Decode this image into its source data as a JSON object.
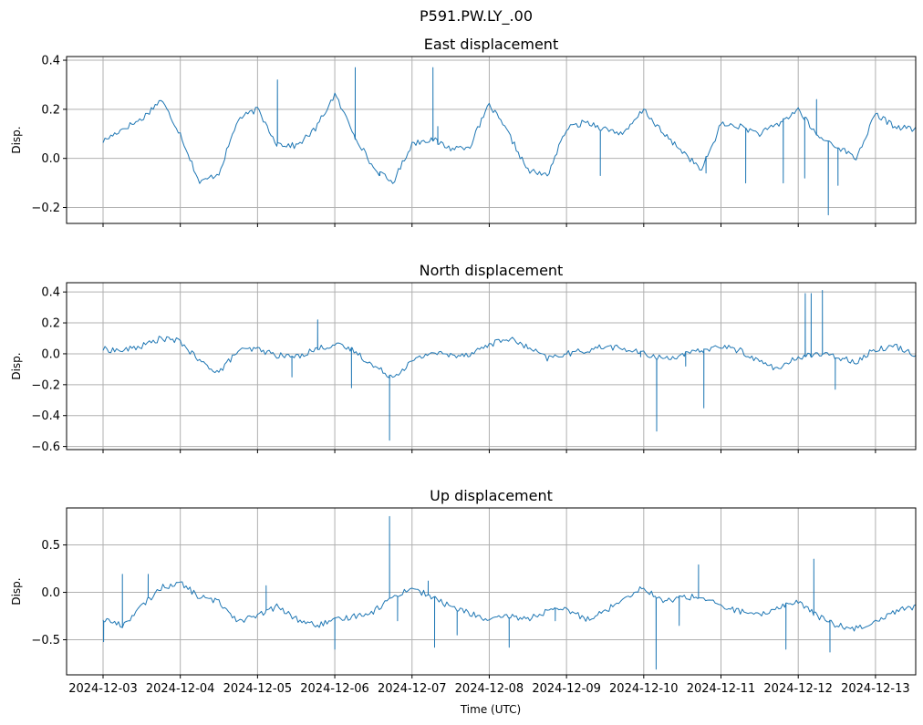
{
  "figure_title": "P591.PW.LY_.00",
  "xlabel": "Time (UTC)",
  "colors": {
    "series": "#1f77b4",
    "grid": "#b0b0b0",
    "frame": "#000000"
  },
  "chart_data": [
    {
      "type": "line",
      "title": "East displacement",
      "ylabel": "Disp.",
      "xlim": [
        "2024-12-02T12:40",
        "2024-12-13T12:30"
      ],
      "ylim": [
        -0.265,
        0.415
      ],
      "yticks": [
        -0.2,
        0.0,
        0.2,
        0.4
      ],
      "ytick_labels": [
        "−0.2",
        "0.0",
        "0.2",
        "0.4"
      ],
      "grid": true,
      "series": [
        {
          "x_start": "2024-12-03T00:00",
          "x_step_hours": 6,
          "values": [
            0.07,
            0.12,
            0.16,
            0.24,
            0.1,
            -0.1,
            -0.06,
            0.16,
            0.2,
            0.06,
            0.05,
            0.12,
            0.26,
            0.1,
            -0.04,
            -0.1,
            0.06,
            0.08,
            0.04,
            0.05,
            0.22,
            0.1,
            -0.05,
            -0.07,
            0.12,
            0.15,
            0.12,
            0.1,
            0.2,
            0.1,
            0.03,
            -0.05,
            0.14,
            0.13,
            0.1,
            0.14,
            0.2,
            0.09,
            0.05,
            0.0,
            0.18,
            0.13,
            0.12,
            0.09,
            0.14,
            0.12,
            0.08,
            0.12,
            0.1,
            0.1,
            0.08,
            0.03,
            0.16,
            0.14,
            0.15,
            0.12,
            0.17,
            0.1,
            0.08,
            0.05,
            0.18,
            0.16,
            0.12,
            0.1,
            0.16,
            0.12,
            0.05,
            0.08,
            0.18,
            0.15,
            0.14,
            0.06,
            0.18,
            0.19,
            0.1,
            0.06,
            0.18,
            0.15,
            0.09,
            0.05,
            0.12,
            0.17,
            0.16,
            0.05,
            0.16,
            0.2,
            0.12,
            0.06,
            0.03,
            0.12,
            0.18,
            0.12,
            0.08,
            0.12,
            0.17,
            0.1,
            0.05,
            0.1,
            0.18,
            0.09,
            0.13,
            0.15,
            0.11,
            0.16,
            0.17,
            0.12,
            0.18,
            0.08,
            0.15,
            0.18,
            0.12,
            0.09,
            0.12,
            0.17,
            0.15,
            0.06,
            0.1,
            0.18,
            0.16,
            0.1,
            0.05,
            0.12,
            0.14,
            0.12,
            0.1,
            0.14,
            0.18,
            0.13,
            0.09,
            0.06,
            0.15,
            0.13,
            0.05,
            0.08,
            0.16,
            0.18,
            0.1,
            0.05,
            0.08,
            0.12,
            0.16,
            0.12,
            0.1,
            0.12,
            0.16,
            0.12,
            0.08,
            0.12,
            0.14,
            0.15,
            0.11,
            0.05,
            0.14,
            0.18,
            0.1,
            0.04,
            0.12,
            0.15,
            0.12,
            0.06,
            0.1,
            0.14,
            0.18,
            0.12,
            0.08,
            0.1,
            0.14,
            0.12,
            0.08,
            0.12,
            0.2,
            0.12,
            0.02,
            0.18,
            0.2,
            0.18,
            0.1,
            0.04,
            0.09,
            0.14,
            0.11,
            0.13,
            0.12
          ],
          "spikes": [
            [
              "2024-12-05T06:10",
              0.32
            ],
            [
              "2024-12-06T06:20",
              0.37
            ],
            [
              "2024-12-06T14:00",
              -0.07
            ],
            [
              "2024-12-07T06:30",
              0.37
            ],
            [
              "2024-12-07T08:00",
              0.13
            ],
            [
              "2024-12-08T12:00",
              -0.04
            ],
            [
              "2024-12-09T10:30",
              -0.07
            ],
            [
              "2024-12-10T19:20",
              -0.06
            ],
            [
              "2024-12-11T07:40",
              -0.1
            ],
            [
              "2024-12-11T19:20",
              -0.1
            ],
            [
              "2024-12-12T02:00",
              -0.08
            ],
            [
              "2024-12-12T05:40",
              0.24
            ],
            [
              "2024-12-12T09:20",
              -0.23
            ],
            [
              "2024-12-12T12:20",
              -0.11
            ]
          ]
        }
      ]
    },
    {
      "type": "line",
      "title": "North displacement",
      "ylabel": "Disp.",
      "xlim": [
        "2024-12-02T12:40",
        "2024-12-13T12:30"
      ],
      "ylim": [
        -0.62,
        0.46
      ],
      "yticks": [
        -0.6,
        -0.4,
        -0.2,
        0.0,
        0.2,
        0.4
      ],
      "ytick_labels": [
        "−0.6",
        "−0.4",
        "−0.2",
        "0.0",
        "0.2",
        "0.4"
      ],
      "grid": true,
      "series": [
        {
          "x_start": "2024-12-03T00:00",
          "x_step_hours": 6,
          "values": [
            0.03,
            0.02,
            0.05,
            0.1,
            0.08,
            -0.05,
            -0.12,
            0.02,
            0.03,
            -0.01,
            -0.02,
            0.03,
            0.06,
            0.02,
            -0.08,
            -0.15,
            -0.05,
            0.01,
            -0.01,
            0.0,
            0.06,
            0.1,
            0.04,
            -0.03,
            0.0,
            0.02,
            0.05,
            0.03,
            0.0,
            -0.03,
            -0.01,
            0.02,
            0.05,
            0.02,
            -0.05,
            -0.1,
            -0.02,
            0.0,
            -0.02,
            -0.05,
            0.03,
            0.05,
            0.0,
            -0.03,
            -0.02,
            0.04,
            0.0,
            -0.05,
            -0.03,
            -0.06,
            -0.08,
            -0.03,
            -0.1,
            -0.15,
            -0.05,
            0.02,
            0.04,
            -0.02,
            -0.05,
            -0.02,
            0.02,
            0.04,
            0.0,
            -0.08,
            -0.04,
            0.02,
            0.03,
            -0.03,
            -0.01,
            0.02,
            0.01,
            -0.05,
            -0.08,
            0.0,
            0.04,
            0.01,
            0.01,
            0.04,
            0.0,
            -0.05,
            -0.02,
            0.01,
            0.0,
            -0.08,
            -0.14,
            -0.05,
            0.03,
            0.04,
            0.0,
            0.01,
            -0.02,
            0.01,
            0.02,
            0.04,
            0.03,
            -0.02,
            0.0,
            0.03,
            0.05,
            0.04,
            0.06,
            0.02,
            -0.05,
            -0.08,
            -0.15,
            -0.1,
            -0.03,
            0.02,
            0.03,
            0.05,
            0.06,
            0.02,
            0.0,
            0.02,
            0.04,
            0.04,
            0.02,
            -0.02,
            0.0,
            0.03,
            0.02,
            0.0,
            0.04,
            0.02,
            -0.01,
            0.01,
            0.05,
            0.03,
            0.02,
            0.05,
            -0.03,
            -0.06,
            -0.05,
            -0.08,
            -0.1,
            0.03,
            0.04,
            0.0,
            0.02,
            0.04,
            0.06,
            0.02,
            0.05,
            0.04,
            0.08,
            0.03,
            0.05,
            0.02,
            0.04,
            0.03,
            0.01,
            -0.03,
            0.0,
            0.02,
            0.03,
            0.02,
            0.04,
            0.05,
            -0.05,
            -0.1,
            -0.08,
            -0.03,
            0.02,
            0.04,
            0.03,
            0.05,
            0.06,
            0.05,
            0.08,
            0.05,
            0.06,
            0.03,
            0.02,
            0.04,
            -0.08,
            -0.12,
            -0.06,
            0.04,
            0.06,
            0.07,
            0.03,
            0.01,
            0.02,
            0.04,
            0.06,
            0.05,
            0.08,
            0.09
          ],
          "spikes": [
            [
              "2024-12-05T18:40",
              0.22
            ],
            [
              "2024-12-05T10:40",
              -0.15
            ],
            [
              "2024-12-06T17:00",
              -0.56
            ],
            [
              "2024-12-06T05:10",
              -0.22
            ],
            [
              "2024-12-10T04:00",
              -0.5
            ],
            [
              "2024-12-09T23:00",
              -0.02
            ],
            [
              "2024-12-10T18:40",
              -0.35
            ],
            [
              "2024-12-10T13:00",
              -0.08
            ],
            [
              "2024-12-12T02:10",
              0.39
            ],
            [
              "2024-12-12T04:00",
              0.39
            ],
            [
              "2024-12-12T07:30",
              0.41
            ],
            [
              "2024-12-12T11:30",
              -0.23
            ]
          ]
        }
      ]
    },
    {
      "type": "line",
      "title": "Up displacement",
      "ylabel": "Disp.",
      "xlim": [
        "2024-12-02T12:40",
        "2024-12-13T12:30"
      ],
      "ylim": [
        -0.87,
        0.89
      ],
      "yticks": [
        -0.5,
        0.0,
        0.5
      ],
      "ytick_labels": [
        "−0.5",
        "0.0",
        "0.5"
      ],
      "grid": true,
      "series": [
        {
          "x_start": "2024-12-03T00:00",
          "x_step_hours": 6,
          "values": [
            -0.28,
            -0.35,
            -0.15,
            0.05,
            0.1,
            -0.05,
            -0.1,
            -0.3,
            -0.25,
            -0.15,
            -0.28,
            -0.35,
            -0.3,
            -0.25,
            -0.2,
            -0.05,
            0.05,
            -0.05,
            -0.15,
            -0.22,
            -0.3,
            -0.25,
            -0.28,
            -0.2,
            -0.18,
            -0.28,
            -0.2,
            -0.05,
            0.05,
            -0.1,
            -0.05,
            -0.05,
            -0.15,
            -0.2,
            -0.25,
            -0.15,
            -0.1,
            -0.25,
            -0.35,
            -0.38,
            -0.3,
            -0.2,
            -0.15,
            -0.05,
            -0.1,
            -0.1,
            -0.2,
            -0.25,
            -0.2,
            -0.3,
            -0.35,
            -0.25,
            -0.15,
            -0.25,
            -0.05,
            -0.2,
            -0.25,
            -0.3,
            -0.2,
            -0.1,
            -0.15,
            -0.3,
            -0.35,
            -0.25,
            -0.15,
            -0.1,
            -0.15,
            -0.3,
            -0.2,
            -0.1,
            -0.2,
            -0.3,
            -0.25,
            -0.15,
            -0.05,
            -0.2,
            -0.3,
            -0.25,
            -0.15,
            -0.2,
            -0.3,
            -0.25,
            -0.15,
            -0.2,
            -0.25,
            -0.3,
            -0.2,
            -0.1,
            -0.25,
            -0.3,
            -0.35,
            -0.25,
            -0.15,
            -0.2,
            -0.1,
            -0.2,
            -0.3,
            -0.25,
            -0.15,
            -0.1,
            -0.2,
            -0.3,
            -0.35,
            -0.25,
            -0.1,
            -0.15,
            -0.25,
            -0.2,
            -0.15,
            -0.05,
            -0.15,
            -0.25,
            -0.35,
            -0.2,
            -0.1,
            0.0,
            -0.05,
            -0.15,
            -0.25,
            -0.3,
            -0.25,
            -0.15,
            -0.2,
            -0.35,
            -0.3,
            -0.15,
            -0.25,
            -0.3,
            -0.2,
            -0.1,
            -0.15,
            -0.25,
            -0.3,
            -0.2,
            -0.15,
            -0.25,
            -0.35,
            -0.3,
            -0.2,
            -0.25,
            -0.35,
            -0.3,
            -0.2,
            -0.1,
            -0.05,
            -0.15,
            -0.25,
            -0.35,
            -0.3,
            -0.2,
            -0.25,
            -0.35,
            -0.3,
            -0.2,
            -0.1,
            -0.05,
            0.0,
            -0.1,
            -0.2,
            -0.3,
            -0.15,
            -0.05,
            -0.1,
            -0.2,
            -0.3,
            -0.35,
            -0.25,
            -0.15,
            -0.05,
            -0.1,
            -0.25,
            -0.38,
            -0.45,
            -0.3,
            -0.2,
            -0.15,
            -0.25,
            -0.35,
            -0.3,
            -0.25,
            -0.3,
            -0.35,
            -0.3,
            -0.32
          ],
          "spikes": [
            [
              "2024-12-03T00:10",
              -0.52
            ],
            [
              "2024-12-03T06:00",
              0.19
            ],
            [
              "2024-12-03T14:00",
              0.19
            ],
            [
              "2024-12-05T02:40",
              0.07
            ],
            [
              "2024-12-06T00:00",
              -0.6
            ],
            [
              "2024-12-06T17:00",
              0.8
            ],
            [
              "2024-12-06T19:30",
              -0.3
            ],
            [
              "2024-12-07T05:00",
              0.12
            ],
            [
              "2024-12-07T07:00",
              -0.58
            ],
            [
              "2024-12-07T14:00",
              -0.45
            ],
            [
              "2024-12-08T06:10",
              -0.58
            ],
            [
              "2024-12-08T20:30",
              -0.3
            ],
            [
              "2024-12-10T03:50",
              -0.81
            ],
            [
              "2024-12-10T11:00",
              -0.35
            ],
            [
              "2024-12-10T17:00",
              0.29
            ],
            [
              "2024-12-11T20:10",
              -0.6
            ],
            [
              "2024-12-12T04:50",
              0.35
            ],
            [
              "2024-12-12T09:50",
              -0.63
            ]
          ]
        }
      ]
    }
  ],
  "xticks": [
    "2024-12-03",
    "2024-12-04",
    "2024-12-05",
    "2024-12-06",
    "2024-12-07",
    "2024-12-08",
    "2024-12-09",
    "2024-12-10",
    "2024-12-11",
    "2024-12-12",
    "2024-12-13"
  ]
}
